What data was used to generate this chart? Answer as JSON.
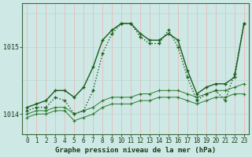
{
  "x": [
    0,
    1,
    2,
    3,
    4,
    5,
    6,
    7,
    8,
    9,
    10,
    11,
    12,
    13,
    14,
    15,
    16,
    17,
    18,
    19,
    20,
    21,
    22,
    23
  ],
  "line_max": [
    1014.1,
    1014.15,
    1014.2,
    1014.35,
    1014.35,
    1014.25,
    1014.4,
    1014.7,
    1015.1,
    1015.25,
    1015.35,
    1015.35,
    1015.2,
    1015.1,
    1015.1,
    1015.2,
    1015.1,
    1014.65,
    1014.3,
    1014.4,
    1014.45,
    1014.45,
    1014.55,
    1015.35
  ],
  "line_inst": [
    1014.05,
    1014.1,
    1014.1,
    1014.25,
    1014.2,
    1014.0,
    1014.05,
    1014.35,
    1014.9,
    1015.2,
    1015.35,
    1015.35,
    1015.15,
    1015.05,
    1015.05,
    1015.25,
    1015.0,
    1014.55,
    1014.2,
    1014.3,
    1014.35,
    1014.2,
    1014.6,
    1015.35
  ],
  "line_mean": [
    1014.0,
    1014.05,
    1014.05,
    1014.1,
    1014.1,
    1014.0,
    1014.05,
    1014.1,
    1014.2,
    1014.25,
    1014.25,
    1014.25,
    1014.3,
    1014.3,
    1014.35,
    1014.35,
    1014.35,
    1014.3,
    1014.25,
    1014.3,
    1014.35,
    1014.35,
    1014.4,
    1014.45
  ],
  "line_min": [
    1013.95,
    1014.0,
    1014.0,
    1014.05,
    1014.05,
    1013.9,
    1013.95,
    1014.0,
    1014.1,
    1014.15,
    1014.15,
    1014.15,
    1014.2,
    1014.2,
    1014.25,
    1014.25,
    1014.25,
    1014.2,
    1014.15,
    1014.2,
    1014.25,
    1014.25,
    1014.3,
    1014.3
  ],
  "bg_color": "#cde8e5",
  "grid_color_v": "#f0b0b0",
  "grid_color_h": "#b8d8d5",
  "line_color_dark": "#1a5c1a",
  "line_color_medium": "#2d7a2d",
  "ylabel_ticks": [
    1014,
    1015
  ],
  "ylim_min": 1013.7,
  "ylim_max": 1015.65,
  "xlim_min": -0.5,
  "xlim_max": 23.5,
  "xlabel": "Graphe pression niveau de la mer (hPa)",
  "marker": "+",
  "markersize": 3.5,
  "linewidth_main": 1.0,
  "linewidth_band": 0.7,
  "tick_fontsize": 6,
  "xlabel_fontsize": 6.5
}
